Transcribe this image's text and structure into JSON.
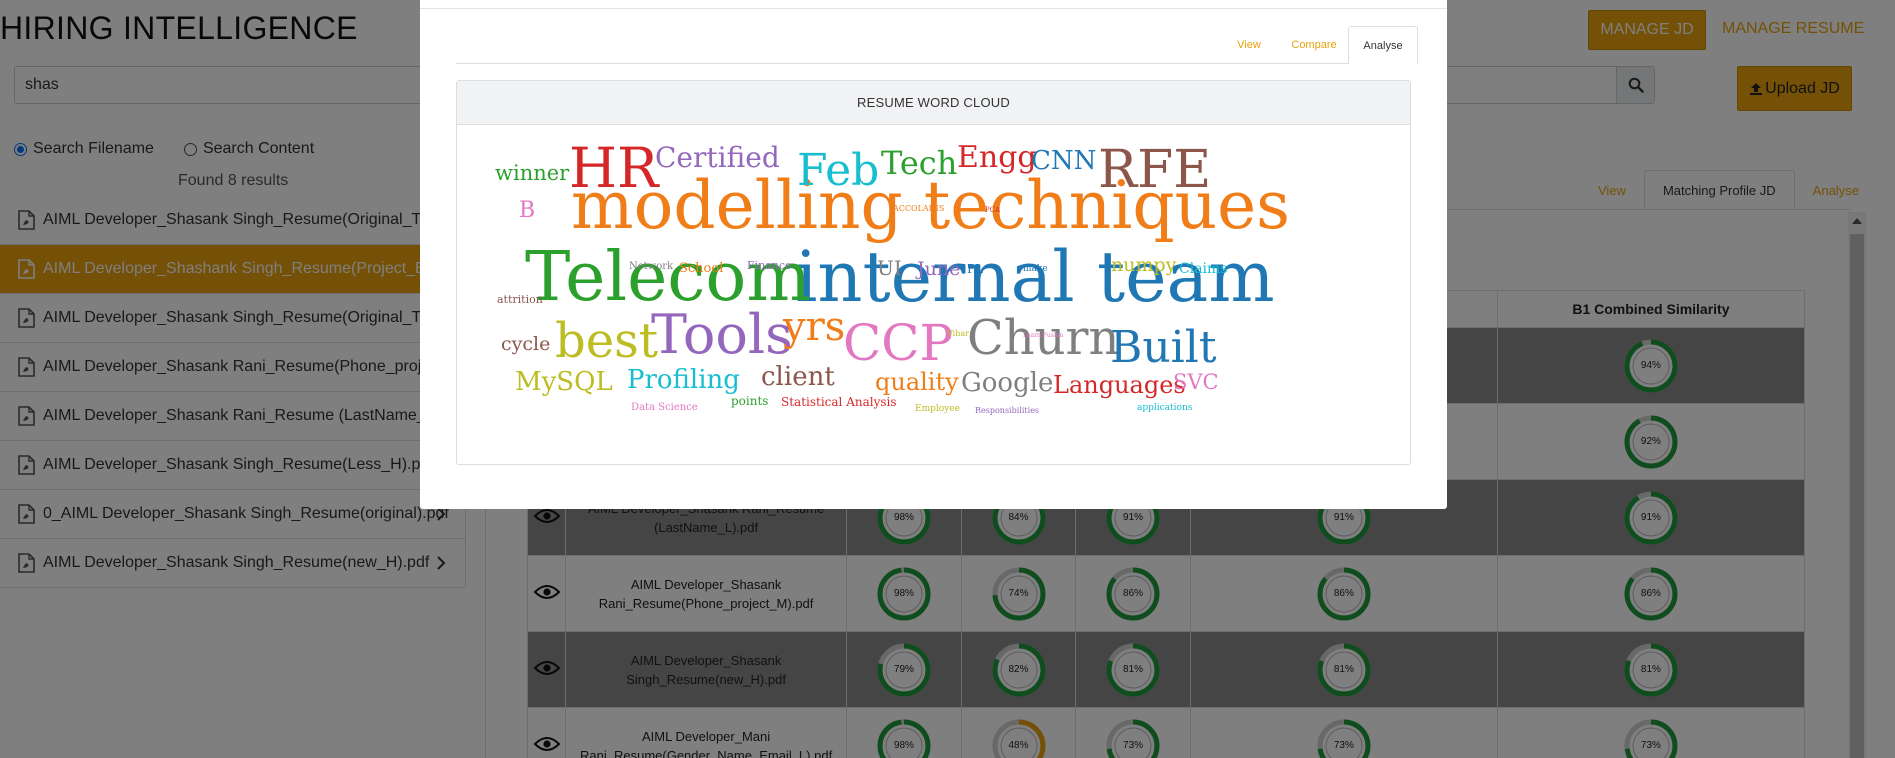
{
  "app": {
    "title": "HIRING INTELLIGENCE",
    "manage_jd_label": "MANAGE JD",
    "manage_resume_label": "MANAGE RESUME",
    "upload_jd_label": "Upload JD",
    "accent_color": "#e8a20c"
  },
  "search": {
    "value": "shas",
    "icon": "search-icon"
  },
  "search_mode": {
    "filename_label": "Search Filename",
    "content_label": "Search Content",
    "selected": "Search Filename"
  },
  "results_count": "Found 8 results",
  "files": [
    {
      "name": "AIML Developer_Shasank Singh_Resume(Original_The",
      "active": false,
      "chevron": false
    },
    {
      "name": "AIML Developer_Shashank Singh_Resume(Project_Em",
      "active": true,
      "chevron": false
    },
    {
      "name": "AIML Developer_Shasank Singh_Resume(Original_The",
      "active": false,
      "chevron": false
    },
    {
      "name": "AIML Developer_Shasank Rani_Resume(Phone_projec",
      "active": false,
      "chevron": false
    },
    {
      "name": "AIML Developer_Shasank Rani_Resume (LastName_L).",
      "active": false,
      "chevron": false
    },
    {
      "name": "AIML Developer_Shasank Singh_Resume(Less_H).pdf",
      "active": false,
      "chevron": false
    },
    {
      "name": "0_AIML Developer_Shasank Singh_Resume(original).pdf",
      "active": false,
      "chevron": true
    },
    {
      "name": "AIML Developer_Shasank Singh_Resume(new_H).pdf",
      "active": false,
      "chevron": true
    }
  ],
  "right_tabs": [
    {
      "label": "View",
      "active": false
    },
    {
      "label": "Matching Profile JD",
      "active": true
    },
    {
      "label": "Analyse",
      "active": false
    }
  ],
  "table": {
    "headers": [
      "B1 Combined Similarity",
      "B1 Combined Similarity"
    ],
    "rows": [
      {
        "name_lines": [],
        "scores": [
          null,
          null,
          null,
          94,
          94
        ],
        "grey": true
      },
      {
        "name_lines": [],
        "scores": [
          null,
          null,
          null,
          92,
          92
        ],
        "grey": false
      },
      {
        "name_lines": [
          "AIML Developer_Shasank Rani_Resume",
          "(LastName_L).pdf"
        ],
        "scores": [
          98,
          84,
          91,
          91,
          91
        ],
        "grey": true
      },
      {
        "name_lines": [
          "AIML Developer_Shasank",
          "Rani_Resume(Phone_project_M).pdf"
        ],
        "scores": [
          98,
          74,
          86,
          86,
          86
        ],
        "grey": false
      },
      {
        "name_lines": [
          "AIML Developer_Shasank",
          "Singh_Resume(new_H).pdf"
        ],
        "scores": [
          79,
          82,
          81,
          81,
          81
        ],
        "grey": true
      },
      {
        "name_lines": [
          "AIML Developer_Mani",
          "Rani_Resume(Gender_Name_Email_L).pdf"
        ],
        "scores": [
          98,
          48,
          73,
          73,
          73
        ],
        "grey": false
      }
    ],
    "ring_colors": {
      "high": "#1e9a3c",
      "low": "#e8a20c",
      "track": "#d0d0d0"
    }
  },
  "modal": {
    "tabs": [
      {
        "label": "View",
        "active": false
      },
      {
        "label": "Compare",
        "active": false
      },
      {
        "label": "Analyse",
        "active": true
      }
    ],
    "card_title": "RESUME WORD CLOUD",
    "words": [
      {
        "text": "modelling techniques",
        "color": "#f07d17"
      },
      {
        "text": "internal team",
        "color": "#1f77b4"
      },
      {
        "text": "Telecom",
        "color": "#2ca02c"
      },
      {
        "text": "HR",
        "color": "#d62728"
      },
      {
        "text": "Feb",
        "color": "#17becf"
      },
      {
        "text": "RFE",
        "color": "#8c564b"
      },
      {
        "text": "Certified",
        "color": "#9467bd"
      },
      {
        "text": "Tech",
        "color": "#2ca02c"
      },
      {
        "text": "Engg",
        "color": "#d62728"
      },
      {
        "text": "CNN",
        "color": "#1f77b4"
      },
      {
        "text": "winner",
        "color": "#2ca02c"
      },
      {
        "text": "B",
        "color": "#e377c2"
      },
      {
        "text": "Tools",
        "color": "#9467bd"
      },
      {
        "text": "best",
        "color": "#bcbd22"
      },
      {
        "text": "yrs",
        "color": "#f07d17"
      },
      {
        "text": "CCP",
        "color": "#e377c2"
      },
      {
        "text": "Churn",
        "color": "#7f7f7f"
      },
      {
        "text": "Built",
        "color": "#1f77b4"
      },
      {
        "text": "MySQL",
        "color": "#bcbd22"
      },
      {
        "text": "Profiling",
        "color": "#17becf"
      },
      {
        "text": "client",
        "color": "#8c564b"
      },
      {
        "text": "quality",
        "color": "#f07d17"
      },
      {
        "text": "Google",
        "color": "#7f7f7f"
      },
      {
        "text": "Languages",
        "color": "#d62728"
      },
      {
        "text": "SVC",
        "color": "#e377c2"
      },
      {
        "text": "cycle",
        "color": "#8c564b"
      },
      {
        "text": "UI",
        "color": "#7f7f7f"
      },
      {
        "text": "June",
        "color": "#9467bd"
      },
      {
        "text": "numpy",
        "color": "#bcbd22"
      },
      {
        "text": "Claims",
        "color": "#17becf"
      },
      {
        "text": "PL",
        "color": "#1f77b4"
      },
      {
        "text": "Network",
        "color": "#7f7f7f"
      },
      {
        "text": "School",
        "color": "#f07d17"
      },
      {
        "text": "Finance",
        "color": "#9467bd"
      },
      {
        "text": "attrition",
        "color": "#8c564b"
      },
      {
        "text": "points",
        "color": "#2ca02c"
      },
      {
        "text": "Statistical Analysis",
        "color": "#d62728"
      },
      {
        "text": "Data Science",
        "color": "#e377c2"
      },
      {
        "text": "Employee",
        "color": "#bcbd22"
      },
      {
        "text": "Responsibilities",
        "color": "#9467bd"
      },
      {
        "text": "applications",
        "color": "#17becf"
      },
      {
        "text": "ACCOLAINS",
        "color": "#f07d17"
      },
      {
        "text": "PCA",
        "color": "#d62728"
      },
      {
        "text": "make",
        "color": "#1f77b4"
      },
      {
        "text": "Vihar",
        "color": "#bcbd22"
      },
      {
        "text": "Learn Fusion",
        "color": "#e377c2"
      }
    ]
  }
}
